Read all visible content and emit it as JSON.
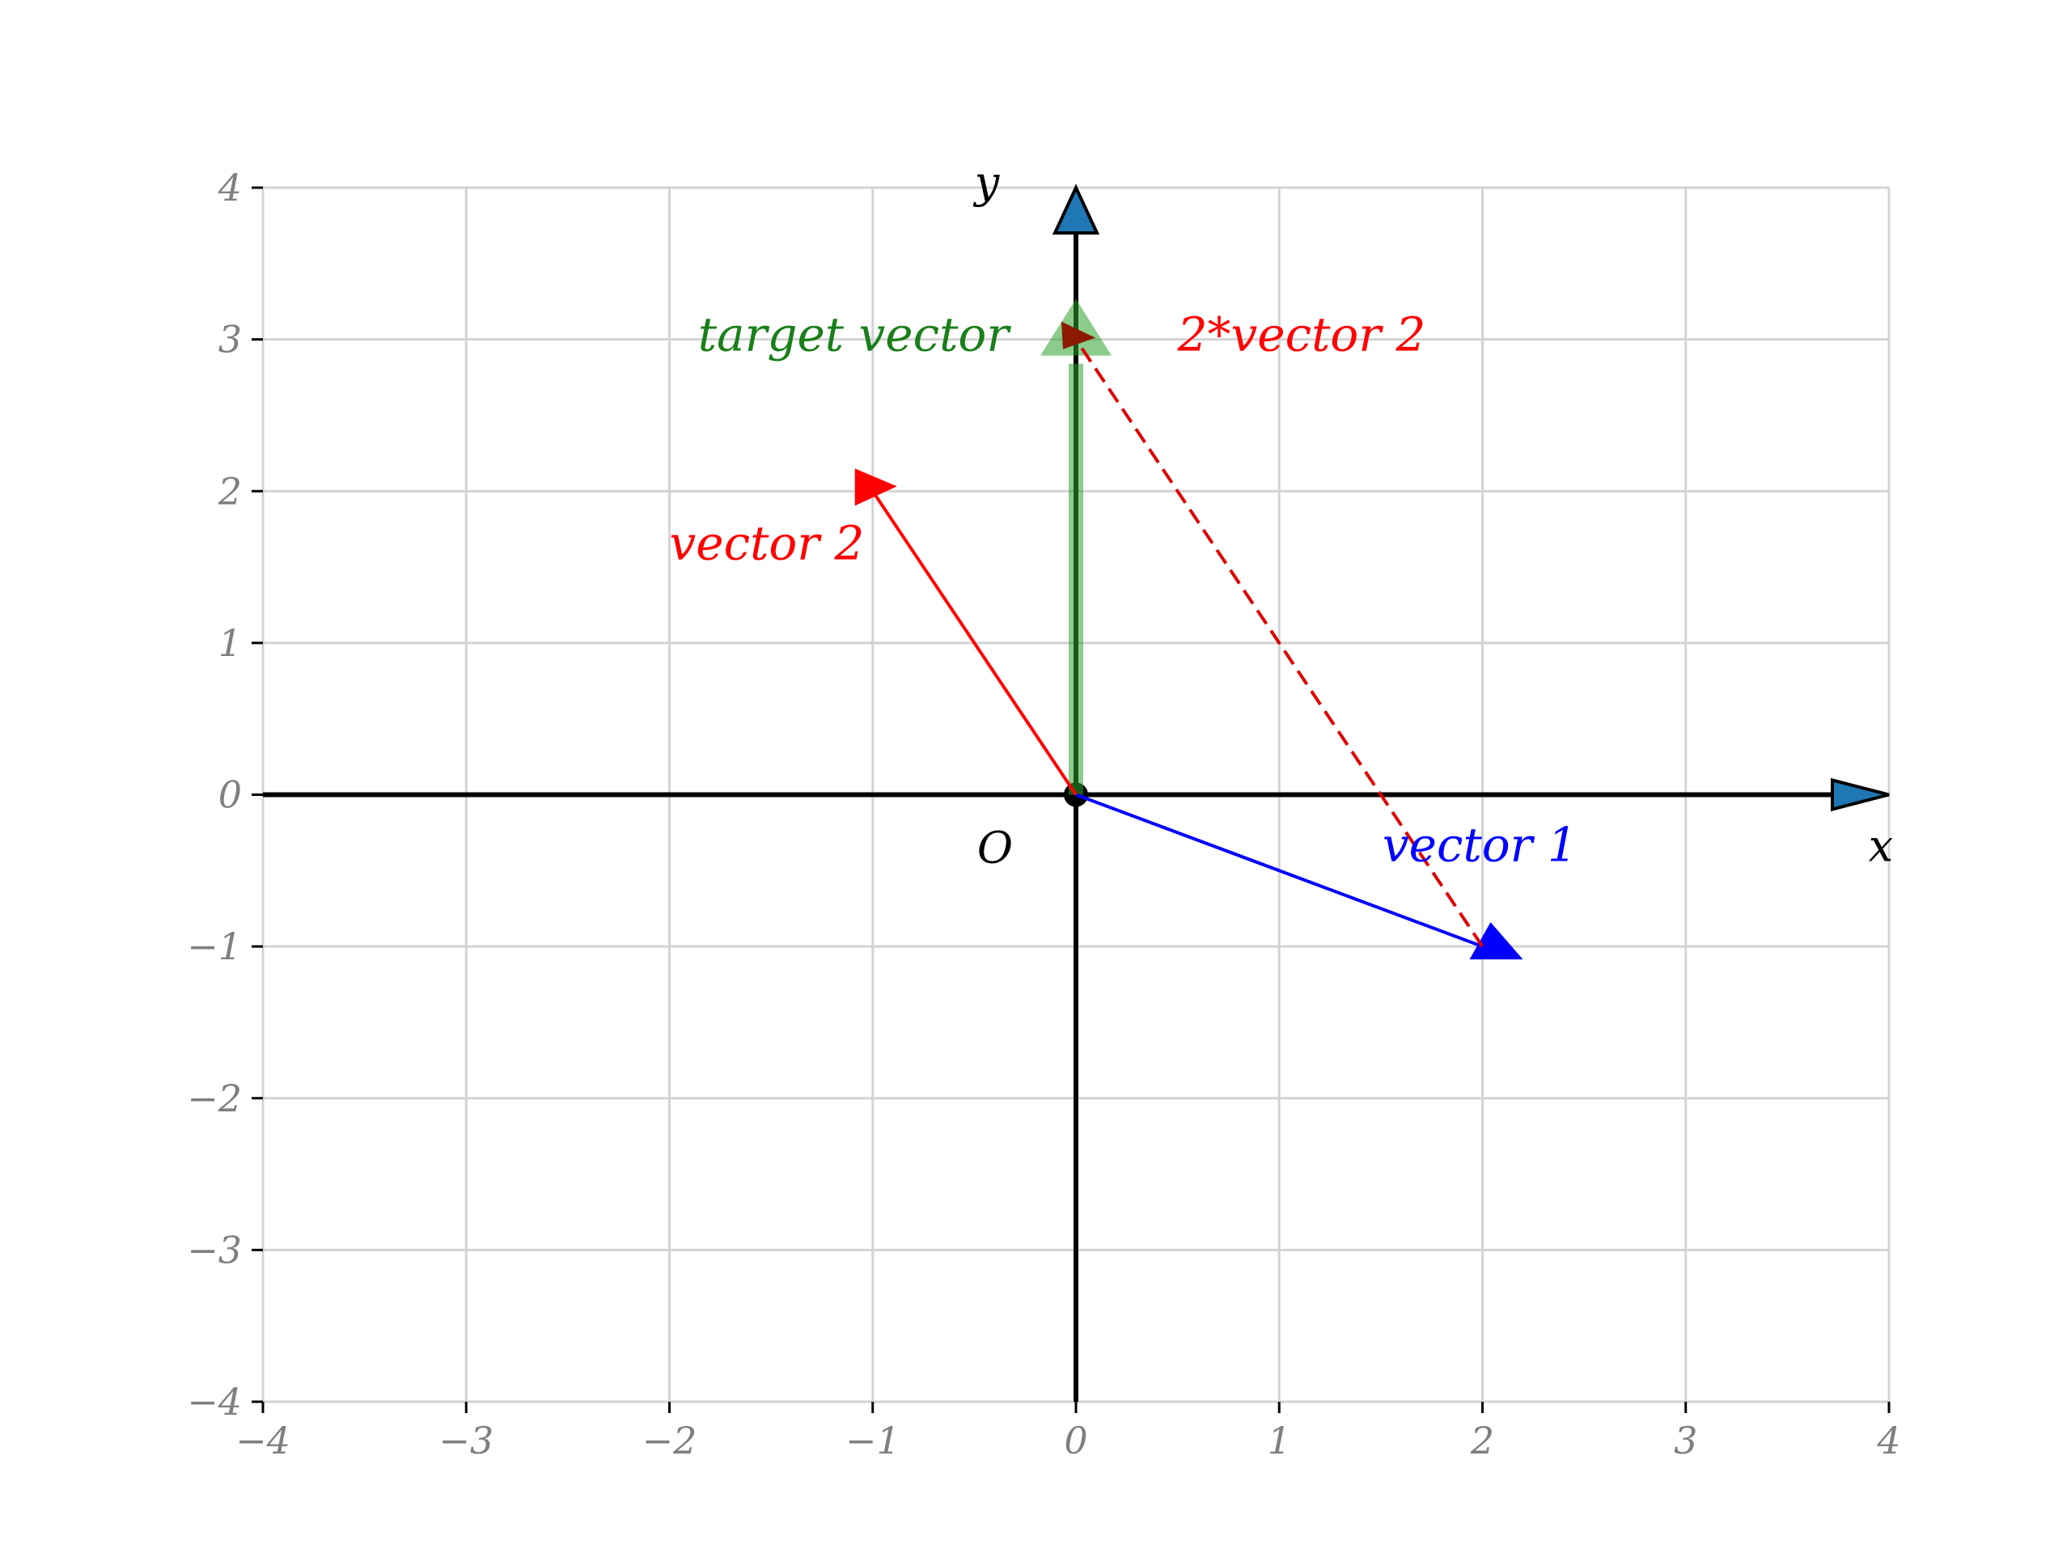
{
  "chart_data": {
    "type": "scatter",
    "title": "",
    "xlim": [
      -4,
      4
    ],
    "ylim": [
      -4,
      4
    ],
    "x_ticks": [
      "−4",
      "−3",
      "−2",
      "−1",
      "0",
      "1",
      "2",
      "3",
      "4"
    ],
    "y_ticks": [
      "−4",
      "−3",
      "−2",
      "−1",
      "0",
      "1",
      "2",
      "3",
      "4"
    ],
    "grid": true,
    "axis_labels": {
      "x": "x",
      "y": "y",
      "origin": "O"
    },
    "colors": {
      "grid": "#d3d3d3",
      "tick": "#7f7f7f",
      "axis": "#000000",
      "axis_arrow": "#1f77b4",
      "vector_1": "#0000ff",
      "vector_2": "#ff0000",
      "scaled_vector_2": "#dd0000",
      "target_vector": "#2ca02c"
    },
    "series": [
      {
        "name": "vector 1",
        "from": [
          0,
          0
        ],
        "to": [
          2,
          -1
        ],
        "style": "solid"
      },
      {
        "name": "vector 2",
        "from": [
          0,
          0
        ],
        "to": [
          -1,
          2
        ],
        "style": "solid"
      },
      {
        "name": "2*vector 2",
        "from": [
          2,
          -1
        ],
        "to": [
          0,
          3
        ],
        "style": "dashed"
      },
      {
        "name": "target vector",
        "from": [
          0,
          0
        ],
        "to": [
          0,
          3
        ],
        "style": "thick-translucent"
      }
    ]
  }
}
